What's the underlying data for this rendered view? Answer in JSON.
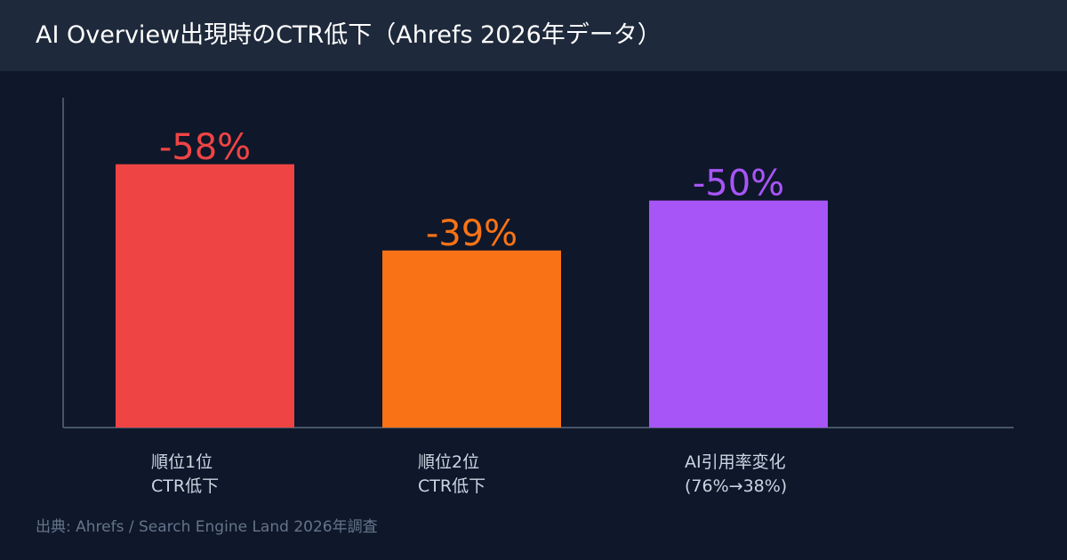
{
  "header": {
    "title": "AI Overview出現時のCTR低下（Ahrefs 2026年データ）"
  },
  "footer": {
    "source": "出典: Ahrefs / Search Engine Land 2026年調査"
  },
  "colors": {
    "background": "#0f172a",
    "header_background": "#1e293b",
    "axis": "#475569",
    "category_label": "#cbd5e1",
    "source_text": "#64748b"
  },
  "chart_data": {
    "type": "bar",
    "title": "AI Overview出現時のCTR低下（Ahrefs 2026年データ）",
    "xlabel": "",
    "ylabel": "",
    "ylim": [
      0,
      65
    ],
    "grid": false,
    "legend": "none",
    "categories": [
      [
        "順位1位",
        "CTR低下"
      ],
      [
        "順位2位",
        "CTR低下"
      ],
      [
        "AI引用率変化",
        "(76%→38%)"
      ]
    ],
    "values": [
      -58,
      -39,
      -50
    ],
    "data_labels": [
      "-58%",
      "-39%",
      "-50%"
    ],
    "bar_colors": [
      "#ef4444",
      "#f97316",
      "#a855f7"
    ]
  }
}
